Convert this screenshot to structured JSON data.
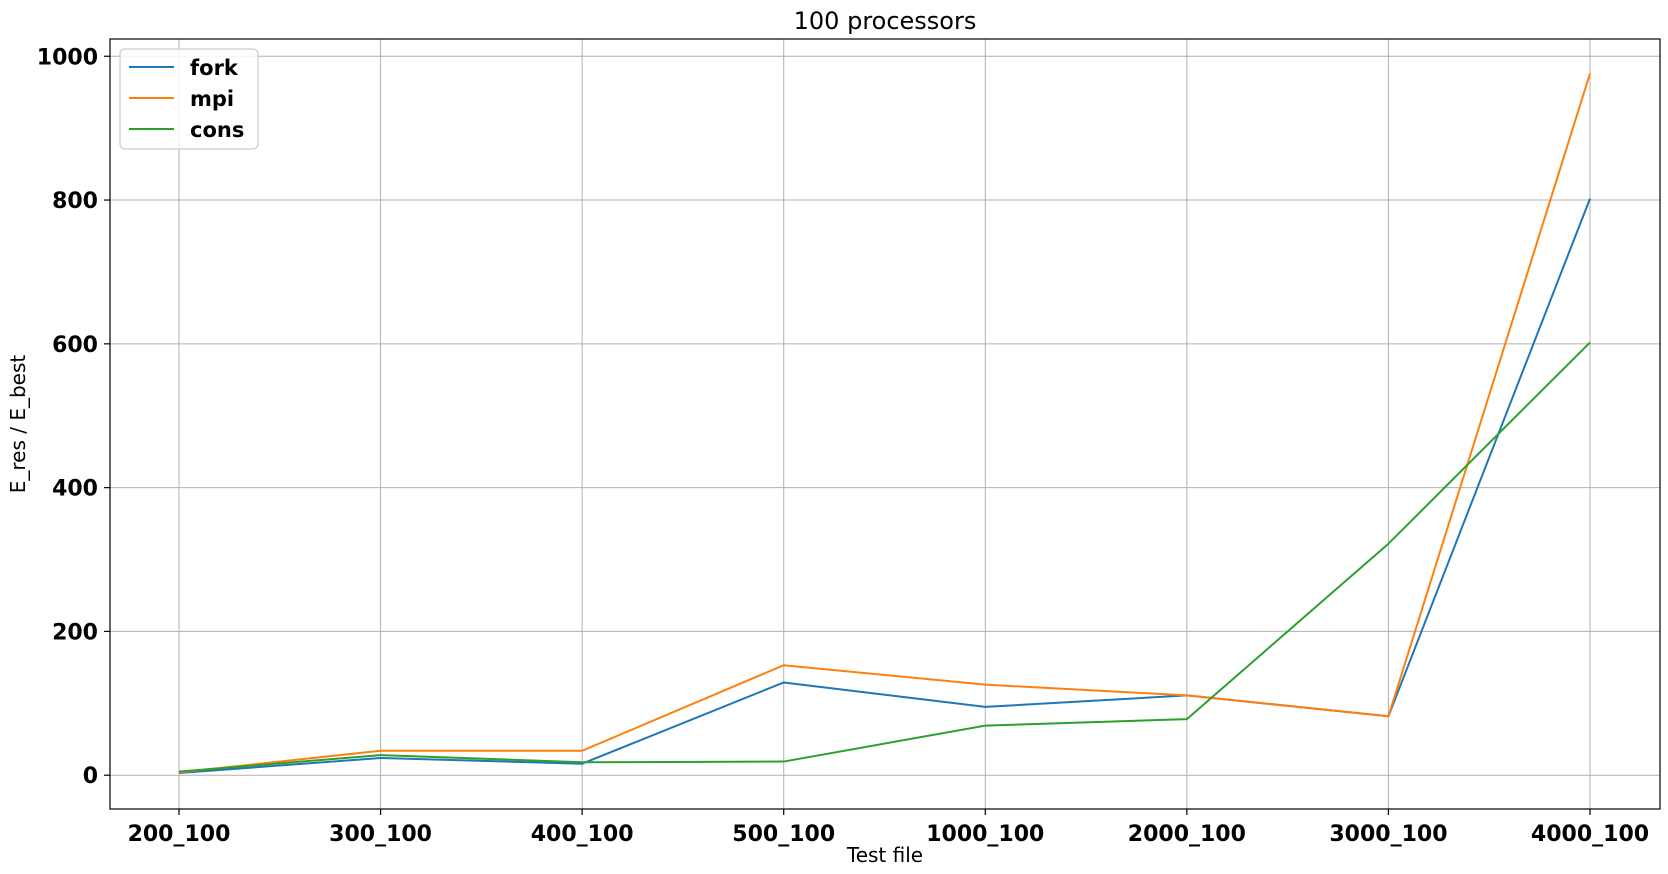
{
  "chart_data": {
    "type": "line",
    "title": "100 processors",
    "xlabel": "Test file",
    "ylabel": "E_res / E_best",
    "categories": [
      "200_100",
      "300_100",
      "400_100",
      "500_100",
      "1000_100",
      "2000_100",
      "3000_100",
      "4000_100"
    ],
    "ylim": [
      -47,
      1024
    ],
    "yticks": [
      0,
      200,
      400,
      600,
      800,
      1000
    ],
    "grid": true,
    "legend_position": "upper left",
    "series": [
      {
        "name": "fork",
        "color": "#1f77b4",
        "values": [
          3,
          24,
          16,
          129,
          95,
          111,
          82,
          802
        ]
      },
      {
        "name": "mpi",
        "color": "#ff7f0e",
        "values": [
          4,
          34,
          34,
          153,
          126,
          111,
          82,
          976
        ]
      },
      {
        "name": "cons",
        "color": "#2ca02c",
        "values": [
          5,
          28,
          18,
          19,
          69,
          78,
          322,
          602
        ]
      }
    ]
  }
}
